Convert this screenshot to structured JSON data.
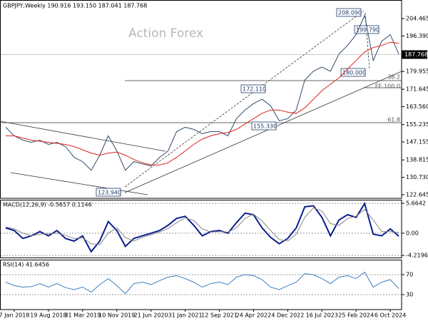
{
  "chart_data": [
    {
      "type": "line",
      "title": "GBPJPY,Weekly  190.916 193.150 187.041 187.768",
      "watermark": "Action Forex",
      "ylim": [
        120.98,
        212.78
      ],
      "yticks": [
        204.465,
        {
          "value": 196.39,
          "label": "196.390"
        },
        179.955,
        171.645,
        {
          "value": 163.56,
          "label": "163.560"
        },
        155.235,
        147.155,
        138.815,
        {
          "value": 130.73,
          "label": "130.730"
        },
        122.645
      ],
      "last_value": 187.768,
      "annotations": [
        "208.090",
        "199.790",
        "180.000",
        "172.110",
        "155.330",
        "123.940",
        "38.2",
        "FE 100.0",
        "61.8"
      ],
      "series": [
        {
          "name": "GBPJPY",
          "color": "#2f4a6b",
          "values": [
            154,
            150,
            148,
            147,
            148,
            146,
            147,
            145,
            140,
            138,
            134,
            141,
            150,
            143,
            134,
            138,
            137,
            136,
            140,
            143,
            152,
            154,
            153,
            151,
            152,
            152,
            150,
            158,
            162,
            165,
            167,
            164,
            157,
            158,
            162,
            176,
            180,
            182,
            180,
            188,
            192,
            197,
            206,
            185,
            194,
            197,
            188
          ]
        },
        {
          "name": "MA",
          "color": "#e0201b",
          "values": [
            150,
            150,
            149,
            148,
            147.5,
            147,
            146.5,
            146,
            145,
            143.5,
            142,
            141,
            142,
            142.5,
            141,
            139,
            137.5,
            136.5,
            136.5,
            137.5,
            140,
            143,
            146,
            148.5,
            150,
            151,
            151.5,
            153,
            155.5,
            158,
            160.5,
            162,
            162,
            161,
            160.5,
            163,
            167,
            171,
            174,
            177,
            181,
            185,
            189,
            191,
            192,
            193.5,
            193
          ]
        }
      ]
    },
    {
      "type": "line",
      "title": "MACD(12,26,9) -0.5657 0.1146",
      "ylim": [
        -4.75,
        6.2
      ],
      "yticks": [
        5.6642,
        {
          "value": 0,
          "label": "0.00"
        },
        -4.2196
      ],
      "series": [
        {
          "name": "MACD",
          "color": "#0b1d8c",
          "values": [
            1.0,
            0.5,
            -1.0,
            -0.5,
            0.3,
            -0.5,
            0.5,
            -1.0,
            -1.5,
            -0.5,
            -3.5,
            -1.5,
            2.2,
            0.5,
            -2.5,
            -1.0,
            -0.5,
            0.0,
            0.5,
            1.5,
            2.8,
            3.2,
            1.5,
            -0.5,
            0.3,
            0.5,
            0.0,
            2.0,
            3.8,
            3.5,
            1.0,
            -0.8,
            -2.0,
            -1.0,
            1.0,
            5.0,
            5.2,
            3.0,
            -0.5,
            2.5,
            3.5,
            3.0,
            5.6,
            -0.2,
            -0.5,
            0.8,
            -0.57
          ]
        },
        {
          "name": "Signal",
          "color": "#888888",
          "values": [
            1.2,
            0.8,
            0.0,
            -0.5,
            -0.2,
            -0.1,
            0.0,
            -0.4,
            -1.0,
            -0.9,
            -2.0,
            -2.2,
            0.0,
            1.0,
            -0.8,
            -1.5,
            -0.8,
            -0.3,
            0.2,
            0.9,
            2.0,
            2.9,
            2.4,
            0.8,
            0.2,
            0.3,
            0.2,
            1.0,
            2.8,
            3.6,
            2.3,
            0.5,
            -1.2,
            -1.5,
            -0.2,
            3.0,
            4.8,
            4.2,
            1.8,
            1.5,
            2.8,
            3.2,
            4.5,
            2.5,
            0.3,
            0.3,
            0.11
          ]
        }
      ]
    },
    {
      "type": "line",
      "title": "RSI(14) 41.6456",
      "ylim": [
        0,
        100
      ],
      "yticks": [
        70,
        30
      ],
      "categories": [
        null,
        "7 Jan 2018",
        null,
        null,
        null,
        "19 Aug 2018",
        null,
        null,
        null,
        "31 Mar 2019",
        null,
        null,
        null,
        "10 Nov 2019",
        null,
        null,
        null,
        "21 Jun 2020",
        null,
        null,
        null,
        "31 Jan 2021",
        null,
        null,
        null,
        "12 Sep 2021",
        null,
        null,
        null,
        "24 Apr 2022",
        null,
        null,
        null,
        "4 Dec 2022",
        null,
        null,
        null,
        "16 Jul 2023",
        null,
        null,
        null,
        "25 Feb 2024",
        null,
        null,
        null,
        "6 Oct 2024",
        null
      ],
      "series": [
        {
          "name": "RSI",
          "color": "#3d7fc0",
          "values": [
            55,
            48,
            45,
            46,
            52,
            45,
            52,
            44,
            40,
            45,
            35,
            50,
            62,
            48,
            32,
            52,
            55,
            50,
            58,
            65,
            68,
            62,
            55,
            45,
            52,
            55,
            50,
            65,
            70,
            68,
            60,
            45,
            40,
            48,
            55,
            72,
            70,
            62,
            52,
            65,
            68,
            62,
            75,
            45,
            55,
            60,
            42
          ]
        }
      ]
    }
  ]
}
